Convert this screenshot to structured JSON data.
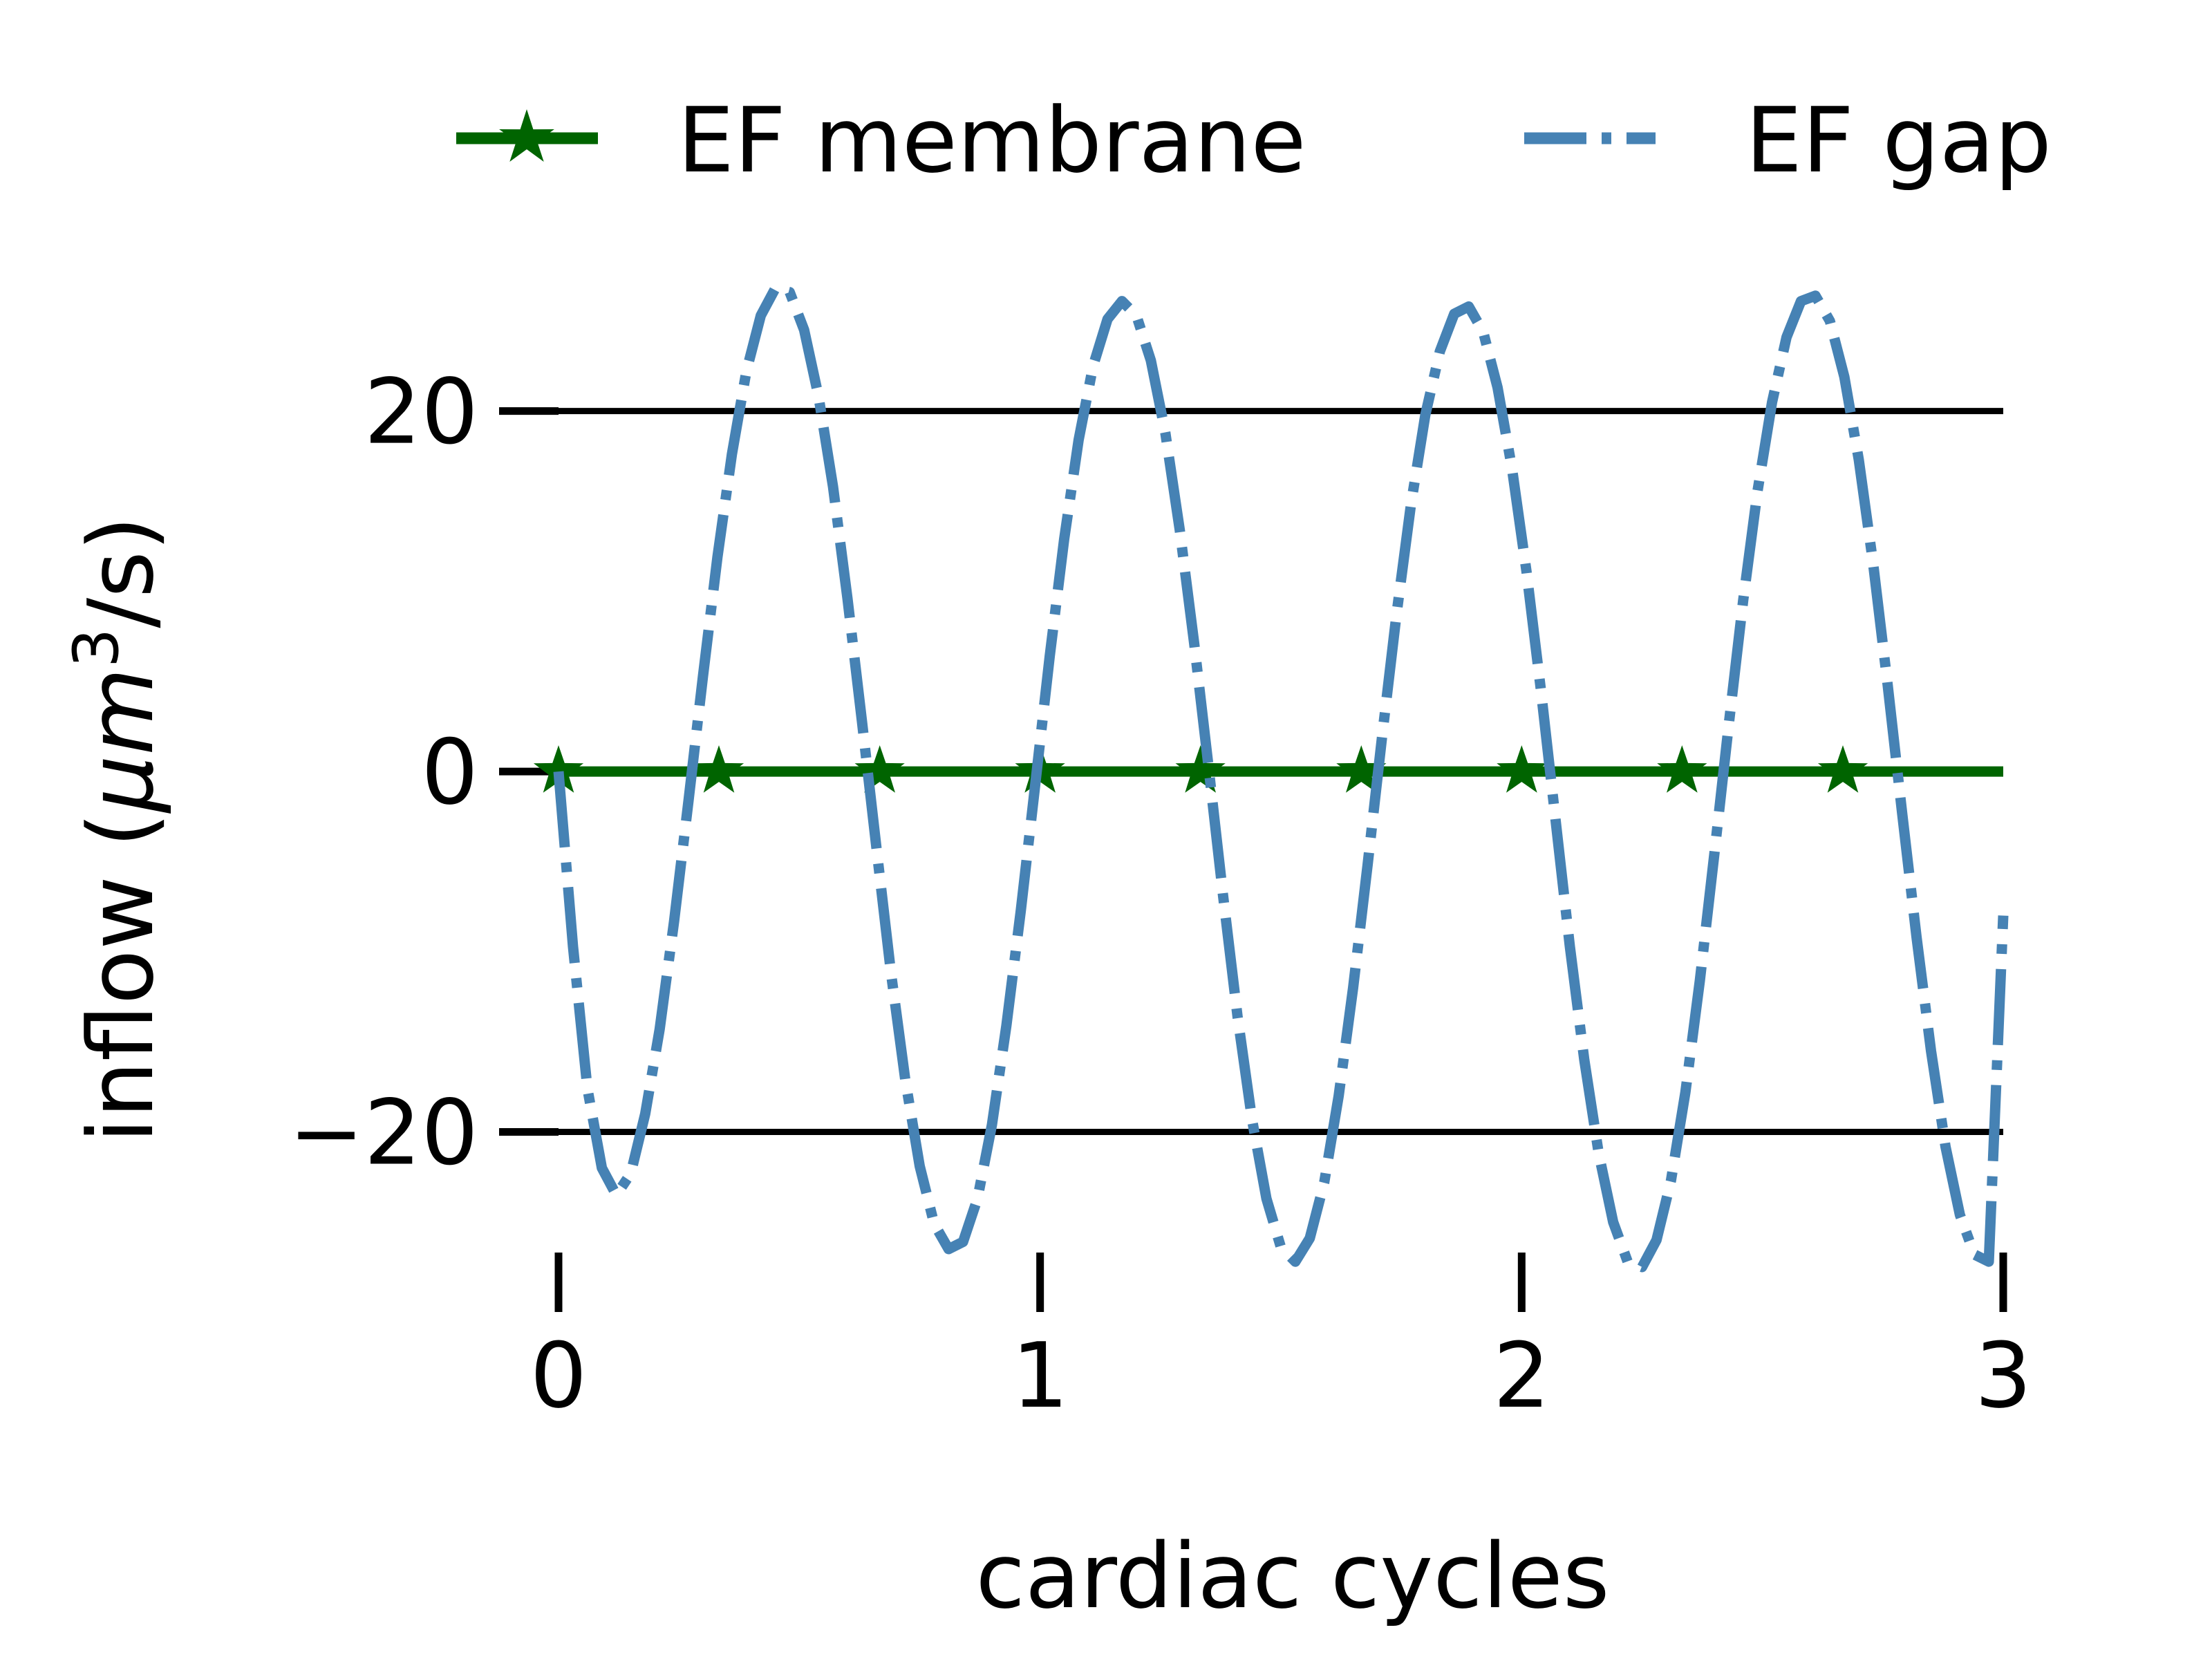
{
  "chart_data": {
    "type": "line",
    "xlabel": "cardiac cycles",
    "ylabel_parts": [
      "inflow (",
      "μm",
      "3",
      "/s)"
    ],
    "xlim": [
      0,
      3
    ],
    "ylim": [
      -27,
      29
    ],
    "xticks": [
      0,
      1,
      2,
      3
    ],
    "xtick_labels": [
      "0",
      "1",
      "2",
      "3"
    ],
    "yticks": [
      -20,
      0,
      20
    ],
    "ytick_labels": [
      "−20",
      "0",
      "20"
    ],
    "grid": "horizontal",
    "legend_position": "top",
    "series": [
      {
        "name": "EF membrane",
        "color": "#006400",
        "linestyle": "solid",
        "marker": "star",
        "x": [
          0,
          0.333,
          0.667,
          1.0,
          1.333,
          1.667,
          2.0,
          2.333,
          2.667,
          3.0
        ],
        "y": [
          0,
          0,
          0,
          0,
          0,
          0,
          0,
          0,
          0,
          0
        ],
        "marker_x": [
          0,
          0.333,
          0.667,
          1.0,
          1.333,
          1.667,
          2.0,
          2.333,
          2.667
        ]
      },
      {
        "name": "EF gap",
        "color": "#4682b4",
        "linestyle": "dashdot",
        "marker": "none",
        "x": [
          0.0,
          0.03,
          0.06,
          0.09,
          0.12,
          0.15,
          0.18,
          0.21,
          0.24,
          0.27,
          0.3,
          0.33,
          0.36,
          0.39,
          0.42,
          0.45,
          0.48,
          0.51,
          0.54,
          0.57,
          0.6,
          0.63,
          0.66,
          0.69,
          0.72,
          0.75,
          0.78,
          0.81,
          0.84,
          0.87,
          0.9,
          0.93,
          0.96,
          0.99,
          1.02,
          1.05,
          1.08,
          1.11,
          1.14,
          1.17,
          1.2,
          1.23,
          1.26,
          1.29,
          1.32,
          1.35,
          1.38,
          1.41,
          1.44,
          1.47,
          1.5,
          1.53,
          1.56,
          1.59,
          1.62,
          1.65,
          1.68,
          1.71,
          1.74,
          1.77,
          1.8,
          1.83,
          1.86,
          1.89,
          1.92,
          1.95,
          1.98,
          2.01,
          2.04,
          2.07,
          2.1,
          2.13,
          2.16,
          2.19,
          2.22,
          2.25,
          2.28,
          2.31,
          2.34,
          2.37,
          2.4,
          2.43,
          2.46,
          2.49,
          2.52,
          2.55,
          2.58,
          2.61,
          2.64,
          2.67,
          2.7,
          2.73,
          2.76,
          2.79,
          2.82,
          2.85,
          2.88,
          2.91,
          2.94,
          2.97,
          3.0
        ],
        "y": [
          0.0,
          -9.7,
          -17.6,
          -22.0,
          -23.5,
          -22.3,
          -19.0,
          -14.3,
          -8.3,
          -1.6,
          5.3,
          11.9,
          17.6,
          22.2,
          25.3,
          26.8,
          26.6,
          24.5,
          20.8,
          15.8,
          9.6,
          2.8,
          -4.2,
          -11.1,
          -17.1,
          -21.9,
          -25.1,
          -26.5,
          -26.1,
          -23.7,
          -19.6,
          -14.1,
          -7.7,
          -0.7,
          6.4,
          12.9,
          18.4,
          22.5,
          25.1,
          26.1,
          25.3,
          22.8,
          18.8,
          13.4,
          7.1,
          0.2,
          -6.9,
          -13.6,
          -19.3,
          -23.7,
          -26.4,
          -27.2,
          -25.9,
          -22.8,
          -18.0,
          -12.0,
          -5.2,
          1.9,
          8.7,
          14.8,
          19.8,
          23.3,
          25.4,
          25.8,
          24.4,
          21.3,
          16.8,
          11.1,
          4.5,
          -2.6,
          -9.7,
          -16.0,
          -21.2,
          -25.0,
          -27.2,
          -27.5,
          -26.0,
          -22.7,
          -17.8,
          -11.6,
          -4.6,
          2.6,
          9.5,
          15.6,
          20.5,
          24.1,
          26.1,
          26.4,
          25.0,
          21.9,
          17.3,
          11.5,
          4.8,
          -2.3,
          -9.2,
          -15.5,
          -20.8,
          -24.6,
          -26.8,
          -27.2,
          -8.0
        ]
      }
    ]
  }
}
